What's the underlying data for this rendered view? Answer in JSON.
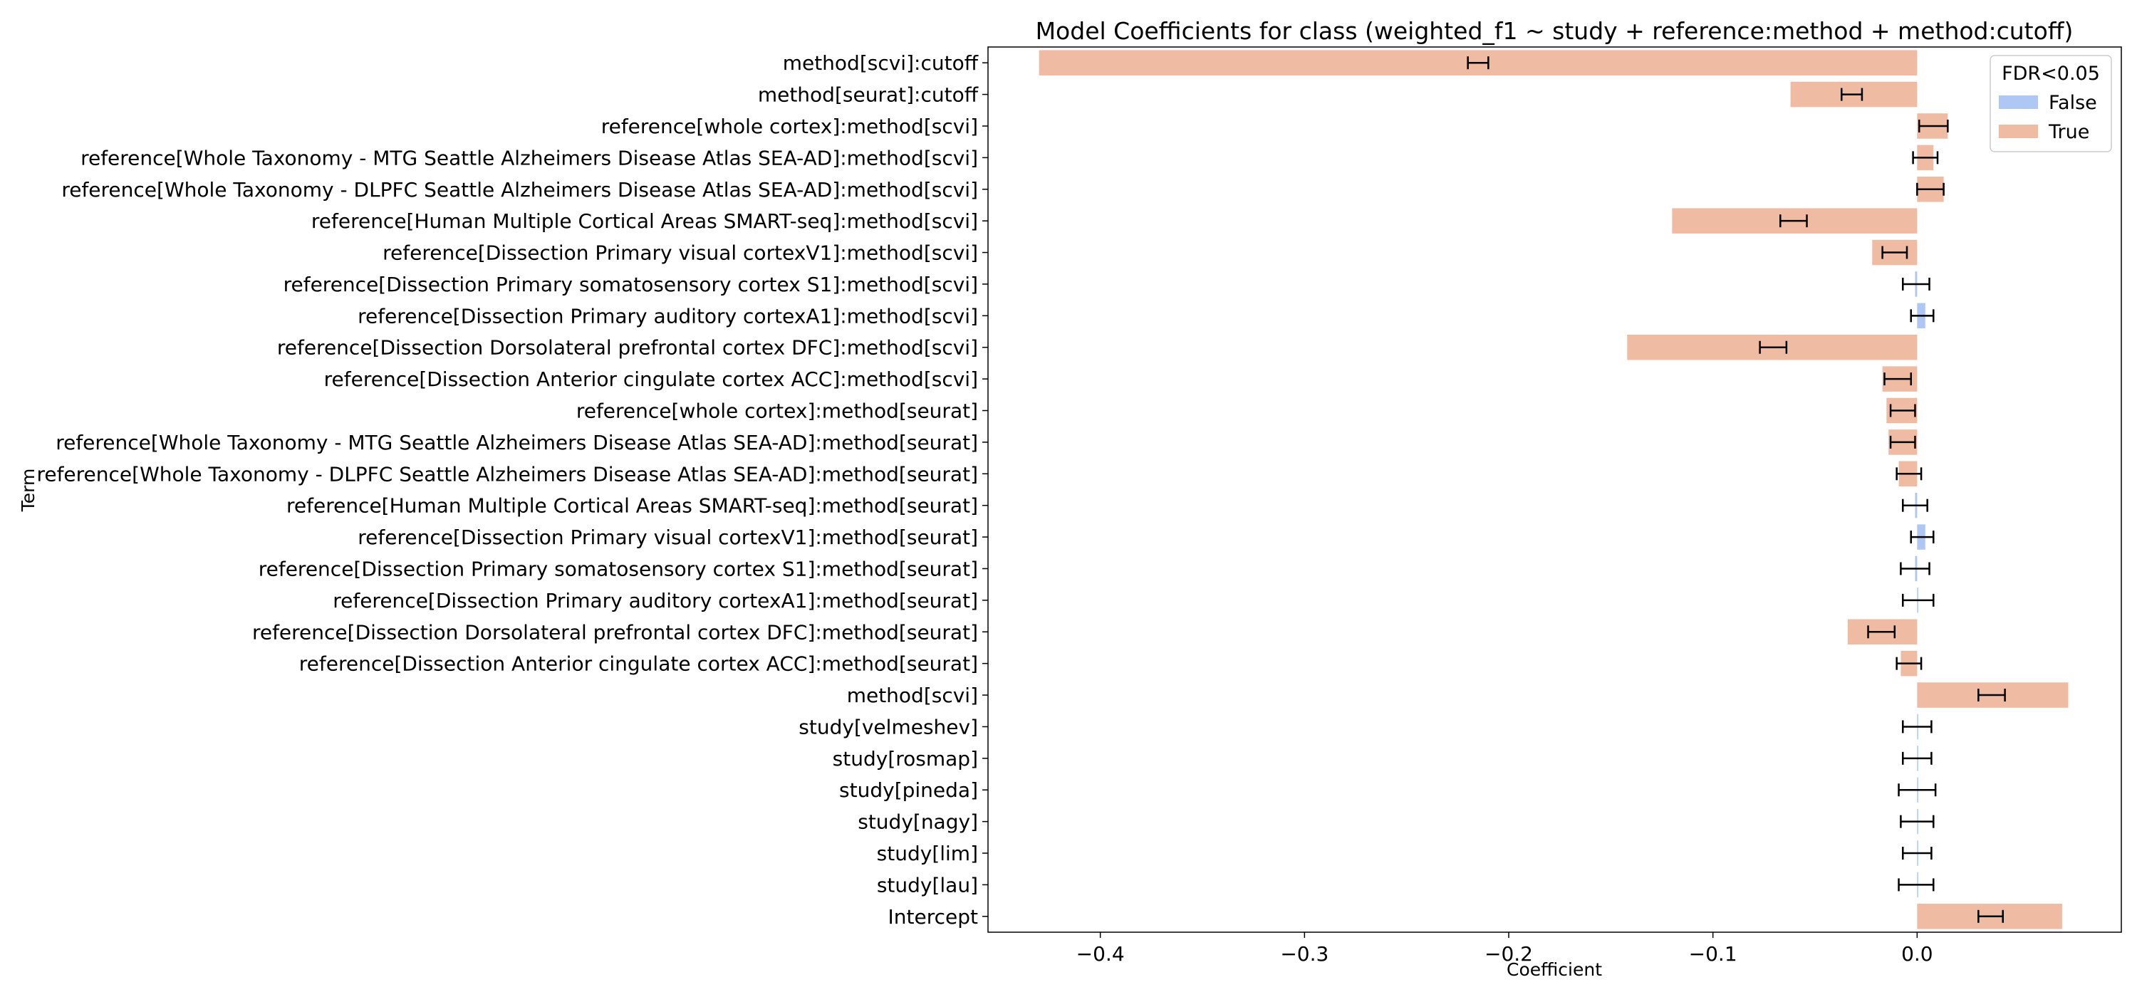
{
  "chart_data": {
    "type": "bar",
    "orientation": "horizontal",
    "title": "Model Coefficients for class (weighted_f1 ~  study + reference:method + method:cutoff)",
    "xlabel": "Coefficient",
    "ylabel": "Term",
    "xlim": [
      -0.455,
      0.1
    ],
    "xticks": [
      -0.4,
      -0.3,
      -0.2,
      -0.1,
      0.0
    ],
    "xtick_labels": [
      "−0.4",
      "−0.3",
      "−0.2",
      "−0.1",
      "0.0"
    ],
    "grid": false,
    "legend": {
      "title": "FDR<0.05",
      "placement": "upper-right",
      "entries": [
        {
          "label": "False",
          "color": "#aec7f3"
        },
        {
          "label": "True",
          "color": "#efbba3"
        }
      ]
    },
    "colors": {
      "False": "#aec7f3",
      "True": "#efbba3"
    },
    "terms": [
      {
        "label": "method[scvi]:cutoff",
        "value": -0.43,
        "lo": -0.22,
        "hi": -0.21,
        "fdr": "True"
      },
      {
        "label": "method[seurat]:cutoff",
        "value": -0.062,
        "lo": -0.037,
        "hi": -0.027,
        "fdr": "True"
      },
      {
        "label": "reference[whole cortex]:method[scvi]",
        "value": 0.015,
        "lo": 0.001,
        "hi": 0.015,
        "fdr": "True"
      },
      {
        "label": "reference[Whole Taxonomy - MTG Seattle Alzheimers Disease Atlas SEA-AD]:method[scvi]",
        "value": 0.008,
        "lo": -0.002,
        "hi": 0.01,
        "fdr": "True"
      },
      {
        "label": "reference[Whole Taxonomy - DLPFC Seattle Alzheimers Disease Atlas SEA-AD]:method[scvi]",
        "value": 0.013,
        "lo": 0.0,
        "hi": 0.013,
        "fdr": "True"
      },
      {
        "label": "reference[Human Multiple Cortical Areas SMART-seq]:method[scvi]",
        "value": -0.12,
        "lo": -0.067,
        "hi": -0.054,
        "fdr": "True"
      },
      {
        "label": "reference[Dissection Primary visual cortexV1]:method[scvi]",
        "value": -0.022,
        "lo": -0.017,
        "hi": -0.005,
        "fdr": "True"
      },
      {
        "label": "reference[Dissection Primary somatosensory cortex S1]:method[scvi]",
        "value": -0.001,
        "lo": -0.007,
        "hi": 0.006,
        "fdr": "False"
      },
      {
        "label": "reference[Dissection Primary auditory cortexA1]:method[scvi]",
        "value": 0.004,
        "lo": -0.003,
        "hi": 0.008,
        "fdr": "False"
      },
      {
        "label": "reference[Dissection Dorsolateral prefrontal cortex DFC]:method[scvi]",
        "value": -0.142,
        "lo": -0.077,
        "hi": -0.064,
        "fdr": "True"
      },
      {
        "label": "reference[Dissection Anterior cingulate cortex ACC]:method[scvi]",
        "value": -0.017,
        "lo": -0.016,
        "hi": -0.003,
        "fdr": "True"
      },
      {
        "label": "reference[whole cortex]:method[seurat]",
        "value": -0.015,
        "lo": -0.013,
        "hi": -0.001,
        "fdr": "True"
      },
      {
        "label": "reference[Whole Taxonomy - MTG Seattle Alzheimers Disease Atlas SEA-AD]:method[seurat]",
        "value": -0.014,
        "lo": -0.013,
        "hi": -0.001,
        "fdr": "True"
      },
      {
        "label": "reference[Whole Taxonomy - DLPFC Seattle Alzheimers Disease Atlas SEA-AD]:method[seurat]",
        "value": -0.009,
        "lo": -0.01,
        "hi": 0.002,
        "fdr": "True"
      },
      {
        "label": "reference[Human Multiple Cortical Areas SMART-seq]:method[seurat]",
        "value": -0.001,
        "lo": -0.007,
        "hi": 0.005,
        "fdr": "False"
      },
      {
        "label": "reference[Dissection Primary visual cortexV1]:method[seurat]",
        "value": 0.004,
        "lo": -0.003,
        "hi": 0.008,
        "fdr": "False"
      },
      {
        "label": "reference[Dissection Primary somatosensory cortex S1]:method[seurat]",
        "value": -0.001,
        "lo": -0.008,
        "hi": 0.006,
        "fdr": "False"
      },
      {
        "label": "reference[Dissection Primary auditory cortexA1]:method[seurat]",
        "value": 0.0,
        "lo": -0.007,
        "hi": 0.008,
        "fdr": "False"
      },
      {
        "label": "reference[Dissection Dorsolateral prefrontal cortex DFC]:method[seurat]",
        "value": -0.034,
        "lo": -0.024,
        "hi": -0.011,
        "fdr": "True"
      },
      {
        "label": "reference[Dissection Anterior cingulate cortex ACC]:method[seurat]",
        "value": -0.008,
        "lo": -0.01,
        "hi": 0.002,
        "fdr": "True"
      },
      {
        "label": "method[scvi]",
        "value": 0.074,
        "lo": 0.03,
        "hi": 0.043,
        "fdr": "True"
      },
      {
        "label": "study[velmeshev]",
        "value": 0.0,
        "lo": -0.007,
        "hi": 0.007,
        "fdr": "False"
      },
      {
        "label": "study[rosmap]",
        "value": 0.0,
        "lo": -0.007,
        "hi": 0.007,
        "fdr": "False"
      },
      {
        "label": "study[pineda]",
        "value": 0.0,
        "lo": -0.009,
        "hi": 0.009,
        "fdr": "False"
      },
      {
        "label": "study[nagy]",
        "value": 0.0,
        "lo": -0.008,
        "hi": 0.008,
        "fdr": "False"
      },
      {
        "label": "study[lim]",
        "value": 0.0,
        "lo": -0.007,
        "hi": 0.007,
        "fdr": "False"
      },
      {
        "label": "study[lau]",
        "value": 0.0,
        "lo": -0.009,
        "hi": 0.008,
        "fdr": "False"
      },
      {
        "label": "Intercept",
        "value": 0.071,
        "lo": 0.03,
        "hi": 0.042,
        "fdr": "True"
      }
    ]
  }
}
